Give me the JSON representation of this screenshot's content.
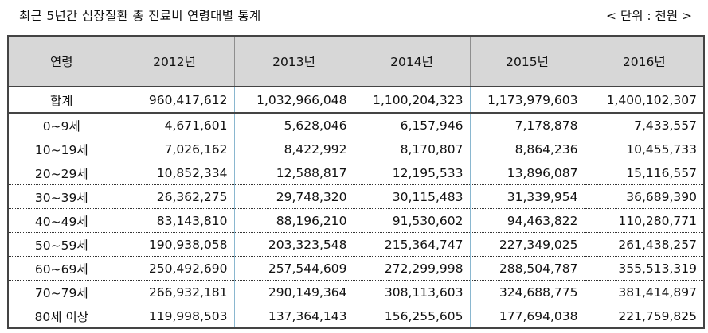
{
  "title": "최근 5년간 심장질환 총 진료비 연령대별 통계",
  "unit": "< 단위 : 천원 >",
  "table": {
    "header": [
      "연령",
      "2012년",
      "2013년",
      "2014년",
      "2015년",
      "2016년"
    ],
    "rows": [
      [
        "합계",
        "960,417,612",
        "1,032,966,048",
        "1,100,204,323",
        "1,173,979,603",
        "1,400,102,307"
      ],
      [
        "0~9세",
        "4,671,601",
        "5,628,046",
        "6,157,946",
        "7,178,878",
        "7,433,557"
      ],
      [
        "10~19세",
        "7,026,162",
        "8,422,992",
        "8,170,807",
        "8,864,236",
        "10,455,733"
      ],
      [
        "20~29세",
        "10,852,334",
        "12,588,817",
        "12,195,533",
        "13,896,087",
        "15,116,557"
      ],
      [
        "30~39세",
        "26,362,275",
        "29,748,320",
        "30,115,483",
        "31,339,954",
        "36,689,390"
      ],
      [
        "40~49세",
        "83,143,810",
        "88,196,210",
        "91,530,602",
        "94,463,822",
        "110,280,771"
      ],
      [
        "50~59세",
        "190,938,058",
        "203,323,548",
        "215,364,747",
        "227,349,025",
        "261,438,257"
      ],
      [
        "60~69세",
        "250,492,690",
        "257,544,609",
        "272,299,998",
        "288,504,787",
        "355,513,319"
      ],
      [
        "70~79세",
        "266,932,181",
        "290,149,364",
        "308,113,603",
        "324,688,775",
        "381,414,897"
      ],
      [
        "80세 이상",
        "119,998,503",
        "137,364,143",
        "156,255,605",
        "177,694,038",
        "221,759,825"
      ]
    ]
  }
}
